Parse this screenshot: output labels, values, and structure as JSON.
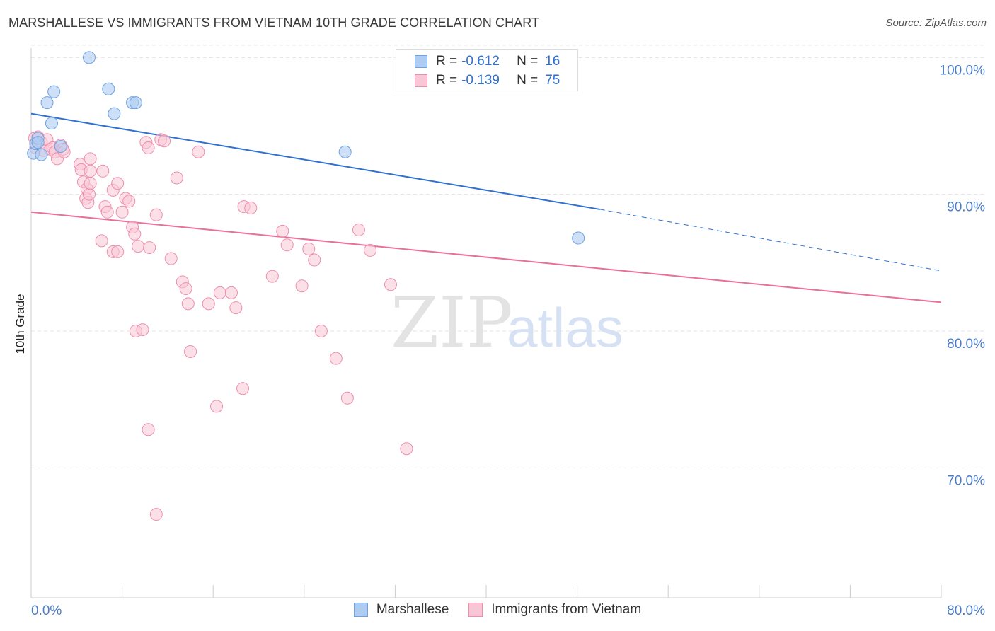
{
  "header": {
    "title": "MARSHALLESE VS IMMIGRANTS FROM VIETNAM 10TH GRADE CORRELATION CHART",
    "source": "Source: ZipAtlas.com"
  },
  "watermark": {
    "part1": "ZIP",
    "part2": "atlas"
  },
  "stats_legend": {
    "r_label": "R =",
    "n_label": "N =",
    "rows": [
      {
        "r": "-0.612",
        "n": "16",
        "color": "#6fa3e0"
      },
      {
        "r": "-0.139",
        "n": "75",
        "color": "#f08fb0"
      }
    ]
  },
  "colors": {
    "blue_fill": "#aecbf2",
    "blue_stroke": "#6fa3e0",
    "blue_line": "#2f70d0",
    "pink_fill": "#f9c6d6",
    "pink_stroke": "#ee8eae",
    "pink_line": "#e8709a",
    "axis_label": "#4a7cc9",
    "grid": "#e3e3e3"
  },
  "chart_data": {
    "type": "scatter",
    "title": "MARSHALLESE VS IMMIGRANTS FROM VIETNAM 10TH GRADE CORRELATION CHART",
    "xlabel": "",
    "ylabel": "10th Grade",
    "xlim": [
      0,
      80
    ],
    "ylim": [
      60.5,
      101
    ],
    "x_tick_labels": [
      "0.0%",
      "80.0%"
    ],
    "y_ticks": [
      70,
      80,
      90,
      100
    ],
    "y_tick_labels": [
      "70.0%",
      "80.0%",
      "90.0%",
      "100.0%"
    ],
    "grid": true,
    "legend_position": "bottom-center",
    "series": [
      {
        "name": "Marshallese",
        "points": [
          [
            0.2,
            93.0
          ],
          [
            0.4,
            93.7
          ],
          [
            0.6,
            94.1
          ],
          [
            0.9,
            92.9
          ],
          [
            1.4,
            96.7
          ],
          [
            1.8,
            95.2
          ],
          [
            2.0,
            97.5
          ],
          [
            2.6,
            93.5
          ],
          [
            5.1,
            100.0
          ],
          [
            6.8,
            97.7
          ],
          [
            7.3,
            95.9
          ],
          [
            8.9,
            96.7
          ],
          [
            9.2,
            96.7
          ],
          [
            27.6,
            93.1
          ],
          [
            48.1,
            86.8
          ],
          [
            0.6,
            93.8
          ]
        ],
        "trend": {
          "x": [
            0,
            50
          ],
          "y": [
            95.9,
            88.9
          ]
        },
        "trend_dashed": {
          "x": [
            50,
            80
          ],
          "y": [
            88.9,
            84.4
          ]
        }
      },
      {
        "name": "Immigrants from Vietnam",
        "points": [
          [
            0.3,
            94.1
          ],
          [
            0.4,
            93.4
          ],
          [
            0.6,
            94.2
          ],
          [
            0.9,
            93.8
          ],
          [
            1.1,
            93.2
          ],
          [
            1.4,
            94.0
          ],
          [
            1.7,
            93.3
          ],
          [
            1.9,
            93.4
          ],
          [
            2.1,
            93.1
          ],
          [
            2.6,
            93.6
          ],
          [
            2.3,
            92.6
          ],
          [
            2.8,
            93.3
          ],
          [
            2.9,
            93.1
          ],
          [
            4.3,
            92.2
          ],
          [
            4.4,
            91.8
          ],
          [
            4.6,
            90.9
          ],
          [
            4.8,
            89.7
          ],
          [
            5.0,
            89.4
          ],
          [
            5.2,
            92.6
          ],
          [
            5.2,
            91.7
          ],
          [
            4.9,
            90.4
          ],
          [
            5.1,
            90.0
          ],
          [
            5.2,
            90.8
          ],
          [
            6.3,
            91.7
          ],
          [
            6.5,
            89.1
          ],
          [
            6.7,
            88.7
          ],
          [
            7.2,
            90.3
          ],
          [
            7.6,
            90.8
          ],
          [
            8.0,
            88.7
          ],
          [
            8.3,
            89.7
          ],
          [
            8.6,
            89.5
          ],
          [
            8.9,
            87.6
          ],
          [
            9.1,
            87.1
          ],
          [
            9.4,
            86.2
          ],
          [
            10.1,
            93.8
          ],
          [
            10.3,
            93.4
          ],
          [
            10.4,
            86.1
          ],
          [
            11.0,
            88.5
          ],
          [
            11.4,
            94.0
          ],
          [
            11.7,
            93.9
          ],
          [
            12.3,
            85.3
          ],
          [
            12.8,
            91.2
          ],
          [
            13.3,
            83.6
          ],
          [
            13.6,
            83.1
          ],
          [
            13.8,
            82.0
          ],
          [
            14.0,
            78.5
          ],
          [
            14.7,
            93.1
          ],
          [
            15.6,
            82.0
          ],
          [
            16.6,
            82.8
          ],
          [
            17.6,
            82.8
          ],
          [
            18.0,
            81.7
          ],
          [
            18.7,
            89.1
          ],
          [
            19.3,
            89.0
          ],
          [
            21.2,
            84.0
          ],
          [
            22.1,
            87.3
          ],
          [
            22.5,
            86.3
          ],
          [
            23.8,
            83.3
          ],
          [
            24.4,
            86.0
          ],
          [
            24.9,
            85.2
          ],
          [
            25.5,
            80.0
          ],
          [
            26.8,
            78.0
          ],
          [
            27.8,
            75.1
          ],
          [
            28.8,
            87.4
          ],
          [
            29.8,
            85.9
          ],
          [
            31.6,
            83.4
          ],
          [
            7.2,
            85.8
          ],
          [
            7.6,
            85.8
          ],
          [
            9.2,
            80.0
          ],
          [
            9.8,
            80.1
          ],
          [
            10.3,
            72.8
          ],
          [
            11.0,
            66.6
          ],
          [
            16.3,
            74.5
          ],
          [
            18.6,
            75.8
          ],
          [
            33.0,
            71.4
          ],
          [
            6.2,
            86.6
          ]
        ],
        "trend": {
          "x": [
            0,
            80
          ],
          "y": [
            88.7,
            82.1
          ]
        }
      }
    ]
  },
  "bottom_legend": [
    {
      "label": "Marshallese"
    },
    {
      "label": "Immigrants from Vietnam"
    }
  ]
}
